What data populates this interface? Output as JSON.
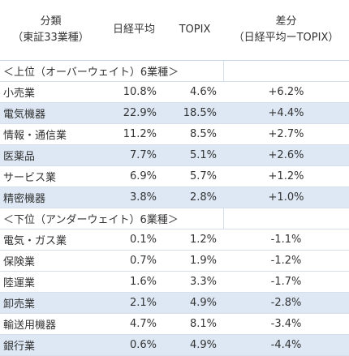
{
  "header": {
    "col_sector": [
      "分類",
      "（東証33業種）"
    ],
    "col_nikkei": "日経平均",
    "col_topix": "TOPIX",
    "col_diff": [
      "差分",
      "（日経平均ーTOPIX）"
    ]
  },
  "sections": [
    {
      "title": "＜上位（オーバーウェイト）6業種＞",
      "rows": [
        {
          "sector": "小売業",
          "nikkei": "10.8%",
          "topix": "4.6%",
          "diff": "+6.2%"
        },
        {
          "sector": "電気機器",
          "nikkei": "22.9%",
          "topix": "18.5%",
          "diff": "+4.4%"
        },
        {
          "sector": "情報・通信業",
          "nikkei": "11.2%",
          "topix": "8.5%",
          "diff": "+2.7%"
        },
        {
          "sector": "医薬品",
          "nikkei": "7.7%",
          "topix": "5.1%",
          "diff": "+2.6%"
        },
        {
          "sector": "サービス業",
          "nikkei": "6.9%",
          "topix": "5.7%",
          "diff": "+1.2%"
        },
        {
          "sector": "精密機器",
          "nikkei": "3.8%",
          "topix": "2.8%",
          "diff": "+1.0%"
        }
      ]
    },
    {
      "title": "＜下位（アンダーウェイト）6業種＞",
      "rows": [
        {
          "sector": "電気・ガス業",
          "nikkei": "0.1%",
          "topix": "1.2%",
          "diff": "-1.1%"
        },
        {
          "sector": "保険業",
          "nikkei": "0.7%",
          "topix": "1.9%",
          "diff": "-1.2%"
        },
        {
          "sector": "陸運業",
          "nikkei": "1.6%",
          "topix": "3.3%",
          "diff": "-1.7%"
        },
        {
          "sector": "卸売業",
          "nikkei": "2.1%",
          "topix": "4.9%",
          "diff": "-2.8%"
        },
        {
          "sector": "輸送用機器",
          "nikkei": "4.7%",
          "topix": "8.1%",
          "diff": "-3.4%"
        },
        {
          "sector": "銀行業",
          "nikkei": "0.6%",
          "topix": "4.9%",
          "diff": "-4.4%"
        }
      ]
    }
  ],
  "colors": {
    "row_shade": "#dde8f4",
    "text": "#333333",
    "border": "#d4dfeb"
  }
}
